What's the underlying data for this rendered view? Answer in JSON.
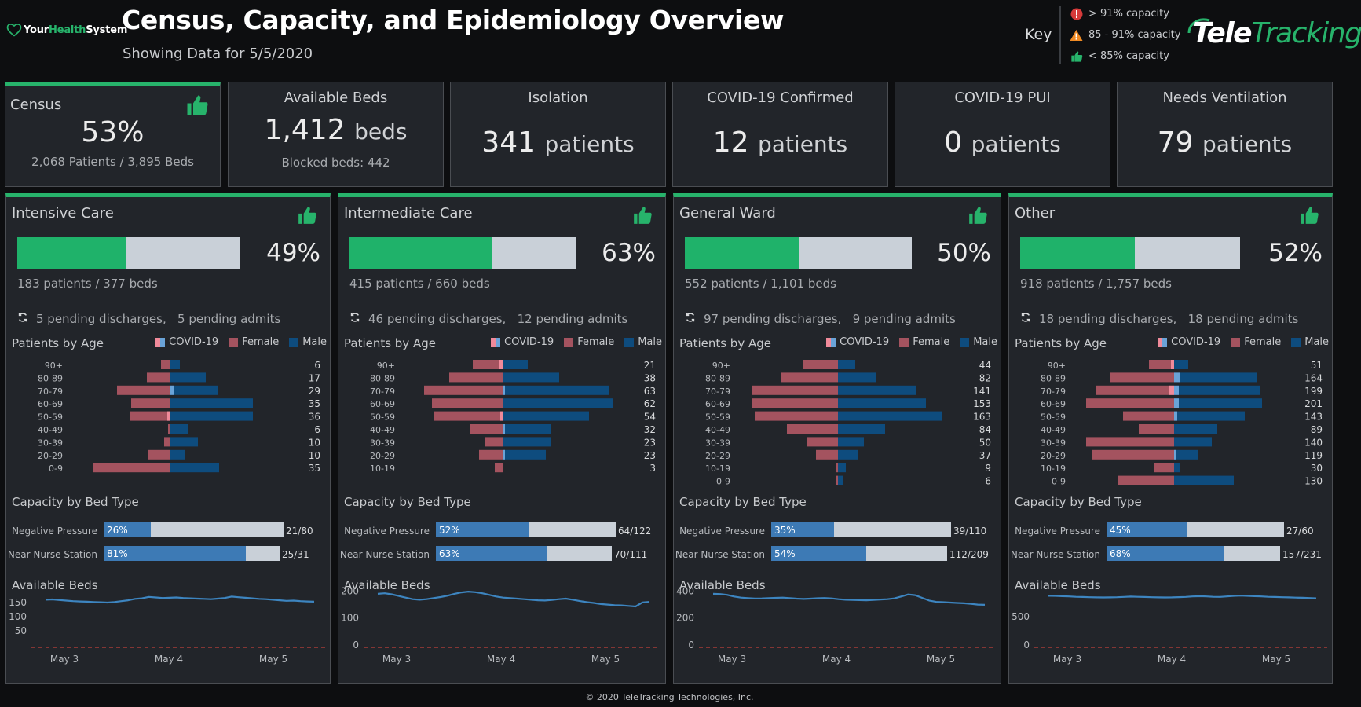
{
  "header": {
    "logo_prefix": "Your",
    "logo_highlight": "Health",
    "logo_suffix": "System",
    "title": "Census, Capacity, and Epidemiology Overview",
    "subtitle": "Showing Data for 5/5/2020",
    "key_label": "Key",
    "key_items": [
      {
        "icon": "alert-circle-icon",
        "text": "> 91% capacity",
        "color": "#d63a3a"
      },
      {
        "icon": "warning-triangle-icon",
        "text": "85 - 91% capacity",
        "color": "#f08a24"
      },
      {
        "icon": "thumbs-up-icon",
        "text": "< 85% capacity",
        "color": "#27b36b"
      }
    ],
    "brand_part1": "Tele",
    "brand_part2": "Tracking"
  },
  "kpis": {
    "census": {
      "title": "Census",
      "value": "53%",
      "sub": "2,068 Patients / 3,895 Beds",
      "status": "thumbs-up-icon"
    },
    "available_beds": {
      "title": "Available Beds",
      "value": "1,412",
      "unit": "beds",
      "sub": "Blocked beds: 442"
    },
    "isolation": {
      "title": "Isolation",
      "value": "341",
      "unit": "patients"
    },
    "covid_confirmed": {
      "title": "COVID-19 Confirmed",
      "value": "12",
      "unit": "patients"
    },
    "covid_pui": {
      "title": "COVID-19 PUI",
      "value": "0",
      "unit": "patients"
    },
    "ventilation": {
      "title": "Needs Ventilation",
      "value": "79",
      "unit": "patients"
    }
  },
  "labels": {
    "patients_by_age": "Patients by Age",
    "capacity_by_bed_type": "Capacity by Bed Type",
    "available_beds": "Available Beds",
    "legend_covid": "COVID-19",
    "legend_female": "Female",
    "legend_male": "Male",
    "bed_type_1": "Negative Pressure",
    "bed_type_2": "Near Nurse Station"
  },
  "colors": {
    "green": "#1fb26a",
    "female": "#a4535f",
    "male": "#0e4c7e",
    "covid_pink": "#f08a9a",
    "covid_blue": "#6aa3d8",
    "bed_fill": "#3d7ab5",
    "trend_line": "#3d85c0",
    "ref_line": "#c0403a"
  },
  "units": [
    {
      "name": "Intensive Care",
      "pct": "49%",
      "pct_value": 0.49,
      "patients_text": "183 patients / 377 beds",
      "pending": "5 pending discharges,   5 pending admits",
      "age_rows": [
        {
          "age": "90+",
          "total": "6",
          "female": 12,
          "male": 12,
          "cf": 0,
          "cm": 0
        },
        {
          "age": "80-89",
          "total": "17",
          "female": 30,
          "male": 45,
          "cf": 0,
          "cm": 0
        },
        {
          "age": "70-79",
          "total": "29",
          "female": 68,
          "male": 60,
          "cf": 0,
          "cm": 4
        },
        {
          "age": "60-69",
          "total": "35",
          "female": 50,
          "male": 105,
          "cf": 0,
          "cm": 0
        },
        {
          "age": "50-59",
          "total": "36",
          "female": 52,
          "male": 105,
          "cf": 4,
          "cm": 0
        },
        {
          "age": "40-49",
          "total": "6",
          "female": 3,
          "male": 22,
          "cf": 0,
          "cm": 0
        },
        {
          "age": "30-39",
          "total": "10",
          "female": 8,
          "male": 35,
          "cf": 0,
          "cm": 0
        },
        {
          "age": "20-29",
          "total": "10",
          "female": 28,
          "male": 18,
          "cf": 0,
          "cm": 0
        },
        {
          "age": "0-9",
          "total": "35",
          "female": 98,
          "male": 62,
          "cf": 0,
          "cm": 0
        }
      ],
      "bed_types": [
        {
          "pct": "26%",
          "value": 0.26,
          "count": "21/80"
        },
        {
          "pct": "81%",
          "value": 0.81,
          "count": "25/31"
        }
      ],
      "trend": {
        "y_ticks": [
          "150",
          "100",
          "50"
        ],
        "y_tick_values": [
          150,
          100,
          50
        ],
        "y_range": [
          0,
          200
        ],
        "x_ticks": [
          "May 3",
          "May 4",
          "May 5"
        ],
        "values": [
          160,
          161,
          159,
          157,
          155,
          154,
          153,
          152,
          151,
          150,
          152,
          155,
          158,
          163,
          165,
          170,
          168,
          166,
          167,
          168,
          166,
          165,
          164,
          163,
          162,
          164,
          166,
          171,
          169,
          167,
          165,
          163,
          162,
          160,
          158,
          156,
          157,
          155,
          154,
          153
        ]
      }
    },
    {
      "name": "Intermediate Care",
      "pct": "63%",
      "pct_value": 0.63,
      "patients_text": "415 patients / 660 beds",
      "pending": "46 pending discharges,   12 pending admits",
      "age_rows": [
        {
          "age": "90+",
          "total": "21",
          "female": 38,
          "male": 32,
          "cf": 5,
          "cm": 0
        },
        {
          "age": "80-89",
          "total": "38",
          "female": 68,
          "male": 72,
          "cf": 0,
          "cm": 0
        },
        {
          "age": "70-79",
          "total": "63",
          "female": 100,
          "male": 135,
          "cf": 0,
          "cm": 3
        },
        {
          "age": "60-69",
          "total": "62",
          "female": 90,
          "male": 140,
          "cf": 0,
          "cm": 0
        },
        {
          "age": "50-59",
          "total": "54",
          "female": 88,
          "male": 110,
          "cf": 3,
          "cm": 0
        },
        {
          "age": "40-49",
          "total": "32",
          "female": 42,
          "male": 62,
          "cf": 0,
          "cm": 3
        },
        {
          "age": "30-39",
          "total": "23",
          "female": 22,
          "male": 62,
          "cf": 0,
          "cm": 0
        },
        {
          "age": "20-29",
          "total": "23",
          "female": 30,
          "male": 55,
          "cf": 0,
          "cm": 3
        },
        {
          "age": "10-19",
          "total": "3",
          "female": 10,
          "male": 0,
          "cf": 0,
          "cm": 0
        }
      ],
      "bed_types": [
        {
          "pct": "52%",
          "value": 0.52,
          "count": "64/122"
        },
        {
          "pct": "63%",
          "value": 0.63,
          "count": "70/111"
        }
      ],
      "trend": {
        "y_ticks": [
          "200",
          "100",
          "0"
        ],
        "y_tick_values": [
          200,
          100,
          0
        ],
        "y_range": [
          0,
          210
        ],
        "x_ticks": [
          "May 3",
          "May 4",
          "May 5"
        ],
        "values": [
          190,
          192,
          188,
          182,
          176,
          170,
          168,
          170,
          174,
          178,
          183,
          190,
          195,
          198,
          196,
          192,
          186,
          180,
          176,
          174,
          172,
          170,
          168,
          166,
          165,
          167,
          170,
          172,
          168,
          163,
          159,
          156,
          152,
          150,
          148,
          147,
          145,
          143,
          158,
          160
        ]
      }
    },
    {
      "name": "General Ward",
      "pct": "50%",
      "pct_value": 0.5,
      "patients_text": "552 patients / 1,101 beds",
      "pending": "97 pending discharges,   9 pending admits",
      "age_rows": [
        {
          "age": "90+",
          "total": "44",
          "female": 45,
          "male": 22,
          "cf": 0,
          "cm": 0
        },
        {
          "age": "80-89",
          "total": "82",
          "female": 72,
          "male": 48,
          "cf": 0,
          "cm": 0
        },
        {
          "age": "70-79",
          "total": "141",
          "female": 110,
          "male": 100,
          "cf": 0,
          "cm": 0
        },
        {
          "age": "60-69",
          "total": "153",
          "female": 110,
          "male": 112,
          "cf": 0,
          "cm": 0
        },
        {
          "age": "50-59",
          "total": "163",
          "female": 106,
          "male": 132,
          "cf": 0,
          "cm": 0
        },
        {
          "age": "40-49",
          "total": "84",
          "female": 65,
          "male": 60,
          "cf": 0,
          "cm": 0
        },
        {
          "age": "30-39",
          "total": "50",
          "female": 40,
          "male": 33,
          "cf": 0,
          "cm": 0
        },
        {
          "age": "20-29",
          "total": "37",
          "female": 28,
          "male": 25,
          "cf": 0,
          "cm": 0
        },
        {
          "age": "10-19",
          "total": "9",
          "female": 3,
          "male": 10,
          "cf": 0,
          "cm": 0
        },
        {
          "age": "0-9",
          "total": "6",
          "female": 2,
          "male": 7,
          "cf": 0,
          "cm": 0
        }
      ],
      "bed_types": [
        {
          "pct": "35%",
          "value": 0.35,
          "count": "39/110"
        },
        {
          "pct": "54%",
          "value": 0.54,
          "count": "112/209"
        }
      ],
      "trend": {
        "y_ticks": [
          "400",
          "200",
          "0"
        ],
        "y_tick_values": [
          400,
          200,
          0
        ],
        "y_range": [
          0,
          420
        ],
        "x_ticks": [
          "May 3",
          "May 4",
          "May 5"
        ],
        "values": [
          380,
          378,
          372,
          360,
          352,
          348,
          345,
          346,
          348,
          350,
          352,
          348,
          344,
          342,
          344,
          347,
          349,
          346,
          340,
          336,
          334,
          333,
          332,
          335,
          338,
          340,
          346,
          360,
          375,
          370,
          350,
          330,
          320,
          318,
          315,
          312,
          310,
          305,
          300,
          298
        ]
      }
    },
    {
      "name": "Other",
      "pct": "52%",
      "pct_value": 0.52,
      "patients_text": "918 patients / 1,757 beds",
      "pending": "18 pending discharges,   18 pending admits",
      "age_rows": [
        {
          "age": "90+",
          "total": "51",
          "female": 32,
          "male": 18,
          "cf": 4,
          "cm": 0
        },
        {
          "age": "80-89",
          "total": "164",
          "female": 82,
          "male": 105,
          "cf": 0,
          "cm": 8
        },
        {
          "age": "70-79",
          "total": "199",
          "female": 100,
          "male": 110,
          "cf": 6,
          "cm": 6
        },
        {
          "age": "60-69",
          "total": "201",
          "female": 112,
          "male": 112,
          "cf": 0,
          "cm": 6
        },
        {
          "age": "50-59",
          "total": "143",
          "female": 65,
          "male": 90,
          "cf": 0,
          "cm": 4
        },
        {
          "age": "40-49",
          "total": "89",
          "female": 45,
          "male": 55,
          "cf": 0,
          "cm": 0
        },
        {
          "age": "30-39",
          "total": "140",
          "female": 112,
          "male": 48,
          "cf": 0,
          "cm": 0
        },
        {
          "age": "20-29",
          "total": "119",
          "female": 105,
          "male": 30,
          "cf": 0,
          "cm": 2
        },
        {
          "age": "10-19",
          "total": "30",
          "female": 25,
          "male": 8,
          "cf": 0,
          "cm": 0
        },
        {
          "age": "0-9",
          "total": "130",
          "female": 72,
          "male": 76,
          "cf": 0,
          "cm": 0
        }
      ],
      "bed_types": [
        {
          "pct": "45%",
          "value": 0.45,
          "count": "27/60"
        },
        {
          "pct": "68%",
          "value": 0.68,
          "count": "157/231"
        }
      ],
      "trend": {
        "y_ticks": [
          "500",
          "0"
        ],
        "y_tick_values": [
          500,
          0
        ],
        "y_range": [
          0,
          1000
        ],
        "x_ticks": [
          "May 3",
          "May 4",
          "May 5"
        ],
        "values": [
          870,
          868,
          862,
          858,
          852,
          848,
          845,
          842,
          840,
          842,
          845,
          850,
          855,
          852,
          848,
          845,
          842,
          840,
          842,
          846,
          850,
          858,
          862,
          858,
          852,
          850,
          858,
          868,
          872,
          868,
          862,
          858,
          852,
          848,
          845,
          842,
          838,
          835,
          830,
          825
        ]
      }
    }
  ],
  "footer": "© 2020 TeleTracking Technologies, Inc."
}
